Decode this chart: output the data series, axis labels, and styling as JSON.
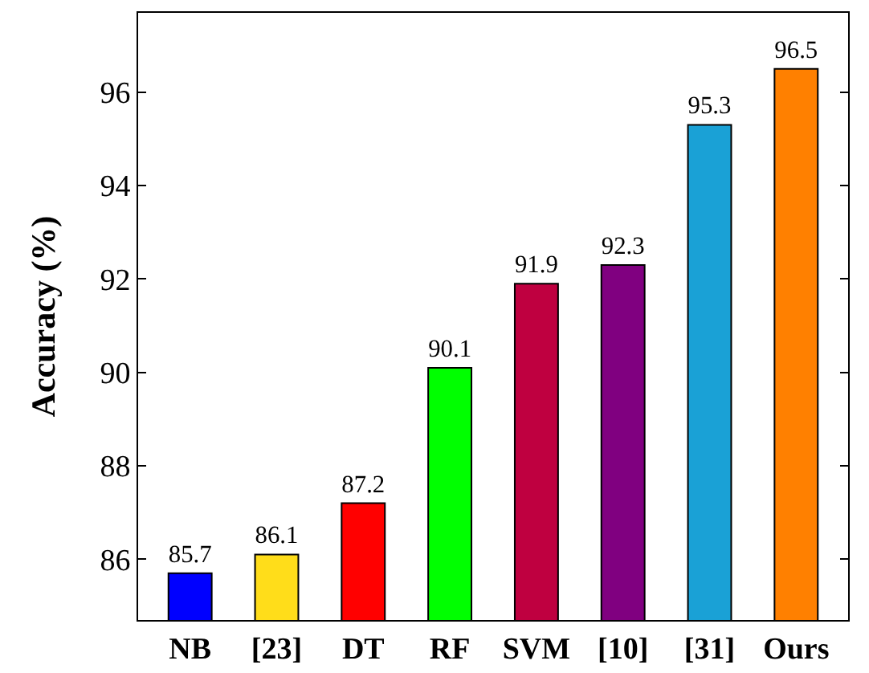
{
  "chart_data": {
    "type": "bar",
    "ylabel": "Accuracy (%)",
    "categories": [
      "NB",
      "[23]",
      "DT",
      "RF",
      "SVM",
      "[10]",
      "[31]",
      "Ours"
    ],
    "values": [
      85.7,
      86.1,
      87.2,
      90.1,
      91.9,
      92.3,
      95.3,
      96.5
    ],
    "colors": [
      "#0000ff",
      "#ffdd1a",
      "#ff0000",
      "#00ff00",
      "#bf0040",
      "#800080",
      "#1aa1d6",
      "#ff8000"
    ],
    "ylim": [
      84.7,
      97.7
    ],
    "yticks": [
      86,
      88,
      90,
      92,
      94,
      96
    ],
    "data_labels": true
  }
}
